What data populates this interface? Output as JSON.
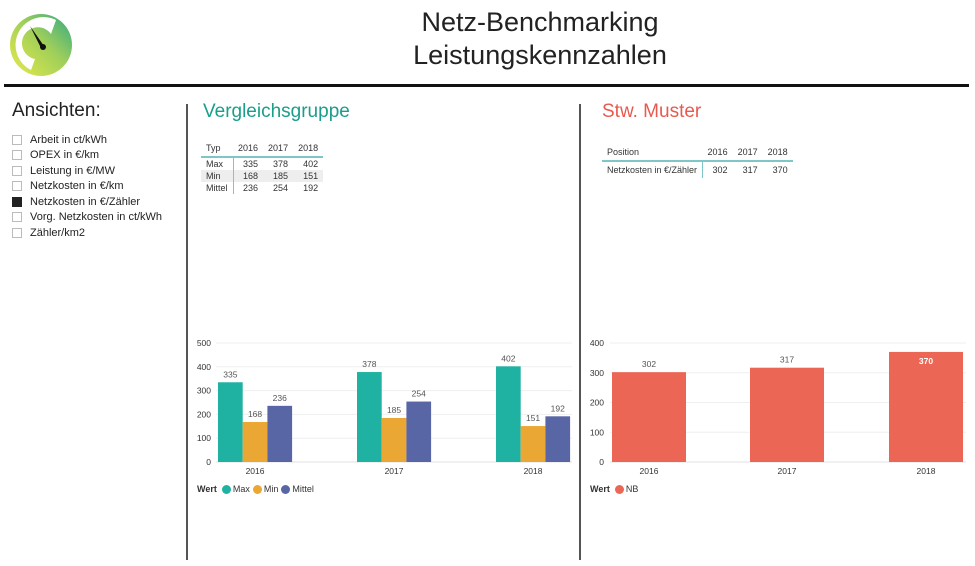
{
  "header": {
    "title_line1": "Netz-Benchmarking",
    "title_line2": "Leistungskennzahlen",
    "logo_icon": "speedometer-gauge-icon"
  },
  "sidebar": {
    "heading": "Ansichten:",
    "items": [
      {
        "label": "Arbeit in ct/kWh",
        "checked": false
      },
      {
        "label": "OPEX in €/km",
        "checked": false
      },
      {
        "label": "Leistung in €/MW",
        "checked": false
      },
      {
        "label": "Netzkosten in €/km",
        "checked": false
      },
      {
        "label": "Netzkosten in €/Zähler",
        "checked": true
      },
      {
        "label": "Vorg. Netzkosten in ct/kWh",
        "checked": false
      },
      {
        "label": "Zähler/km2",
        "checked": false
      }
    ]
  },
  "colors": {
    "teal": "#1fb2a2",
    "orange": "#eba733",
    "purple": "#5966a6",
    "red": "#ec6656",
    "title_teal": "#1a9e8a",
    "title_red": "#e85a4f"
  },
  "left_panel": {
    "title": "Vergleichsgruppe",
    "table": {
      "headers": [
        "Typ",
        "2016",
        "2017",
        "2018"
      ],
      "rows": [
        [
          "Max",
          "335",
          "378",
          "402"
        ],
        [
          "Min",
          "168",
          "185",
          "151"
        ],
        [
          "Mittel",
          "236",
          "254",
          "192"
        ]
      ]
    },
    "legend_title": "Wert"
  },
  "right_panel": {
    "title": "Stw. Muster",
    "table": {
      "headers": [
        "Position",
        "2016",
        "2017",
        "2018"
      ],
      "rows": [
        [
          "Netzkosten in €/Zähler",
          "302",
          "317",
          "370"
        ]
      ]
    },
    "legend_title": "Wert"
  },
  "chart_data": [
    {
      "type": "bar",
      "title": "",
      "categories": [
        "2016",
        "2017",
        "2018"
      ],
      "series": [
        {
          "name": "Max",
          "values": [
            335,
            378,
            402
          ],
          "color": "#1fb2a2"
        },
        {
          "name": "Min",
          "values": [
            168,
            185,
            151
          ],
          "color": "#eba733"
        },
        {
          "name": "Mittel",
          "values": [
            236,
            254,
            192
          ],
          "color": "#5966a6"
        }
      ],
      "yticks": [
        0,
        100,
        200,
        300,
        400,
        500
      ],
      "ylim": [
        0,
        500
      ],
      "grid": true,
      "legend_title": "Wert",
      "legend": "bottom-left",
      "xlabel": "",
      "ylabel": ""
    },
    {
      "type": "bar",
      "title": "",
      "categories": [
        "2016",
        "2017",
        "2018"
      ],
      "series": [
        {
          "name": "NB",
          "values": [
            302,
            317,
            370
          ],
          "color": "#ec6656"
        }
      ],
      "yticks": [
        0,
        100,
        200,
        300,
        400
      ],
      "ylim": [
        0,
        400
      ],
      "grid": true,
      "legend_title": "Wert",
      "legend": "bottom-left",
      "xlabel": "",
      "ylabel": ""
    }
  ]
}
